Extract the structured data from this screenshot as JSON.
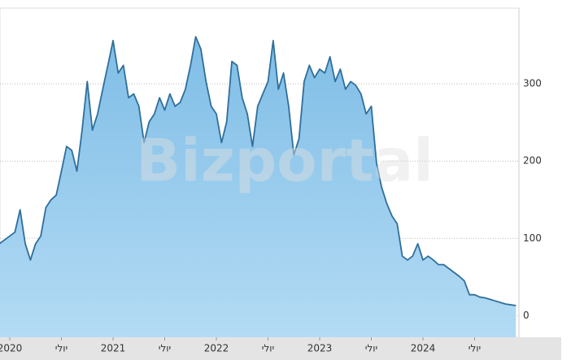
{
  "chart_data": {
    "type": "area",
    "watermark": "Bizportal",
    "x": [
      2019.9,
      2019.95,
      2020,
      2020.05,
      2020.1,
      2020.15,
      2020.2,
      2020.25,
      2020.3,
      2020.35,
      2020.4,
      2020.45,
      2020.5,
      2020.55,
      2020.6,
      2020.65,
      2020.7,
      2020.75,
      2020.8,
      2020.85,
      2020.9,
      2020.95,
      2021,
      2021.05,
      2021.1,
      2021.15,
      2021.2,
      2021.25,
      2021.3,
      2021.35,
      2021.4,
      2021.45,
      2021.5,
      2021.55,
      2021.6,
      2021.65,
      2021.7,
      2021.75,
      2021.8,
      2021.85,
      2021.9,
      2021.95,
      2022,
      2022.05,
      2022.1,
      2022.15,
      2022.2,
      2022.25,
      2022.3,
      2022.35,
      2022.4,
      2022.45,
      2022.5,
      2022.55,
      2022.6,
      2022.65,
      2022.7,
      2022.75,
      2022.8,
      2022.85,
      2022.9,
      2022.95,
      2023,
      2023.05,
      2023.1,
      2023.15,
      2023.2,
      2023.25,
      2023.3,
      2023.35,
      2023.4,
      2023.45,
      2023.5,
      2023.55,
      2023.6,
      2023.65,
      2023.7,
      2023.75,
      2023.8,
      2023.85,
      2023.9,
      2023.95,
      2024,
      2024.05,
      2024.1,
      2024.15,
      2024.2,
      2024.25,
      2024.3,
      2024.35,
      2024.4,
      2024.45,
      2024.5,
      2024.55,
      2024.6,
      2024.65,
      2024.7,
      2024.75,
      2024.8,
      2024.85,
      2024.9
    ],
    "values": [
      93,
      98,
      103,
      108,
      137,
      93,
      72,
      93,
      103,
      140,
      150,
      156,
      187,
      219,
      214,
      187,
      240,
      303,
      240,
      261,
      293,
      324,
      356,
      314,
      324,
      282,
      287,
      271,
      224,
      251,
      261,
      282,
      266,
      287,
      271,
      276,
      293,
      324,
      361,
      345,
      303,
      271,
      261,
      224,
      251,
      329,
      324,
      282,
      261,
      219,
      271,
      287,
      303,
      356,
      293,
      314,
      271,
      208,
      229,
      303,
      324,
      308,
      319,
      314,
      335,
      303,
      319,
      293,
      303,
      298,
      287,
      261,
      271,
      198,
      166,
      145,
      129,
      119,
      77,
      72,
      77,
      93,
      72,
      77,
      72,
      66,
      66,
      61,
      56,
      51,
      45,
      27,
      27,
      24,
      23,
      21,
      19,
      17,
      15,
      14,
      13
    ],
    "color": "#2e6f9c",
    "fill": "#92c9eb",
    "xlim": [
      2019.9,
      2024.9
    ],
    "xticks": [
      {
        "value": 2020,
        "label": "2020"
      },
      {
        "value": 2020.5,
        "label": "יולי"
      },
      {
        "value": 2021,
        "label": "2021"
      },
      {
        "value": 2021.5,
        "label": "יולי"
      },
      {
        "value": 2022,
        "label": "2022"
      },
      {
        "value": 2022.5,
        "label": "יולי"
      },
      {
        "value": 2023,
        "label": "2023"
      },
      {
        "value": 2023.5,
        "label": "יולי"
      },
      {
        "value": 2024,
        "label": "2024"
      },
      {
        "value": 2024.5,
        "label": "יולי"
      }
    ],
    "ylim": [
      -28,
      398
    ],
    "yticks": [
      0,
      100,
      200,
      300
    ],
    "grid": true
  }
}
